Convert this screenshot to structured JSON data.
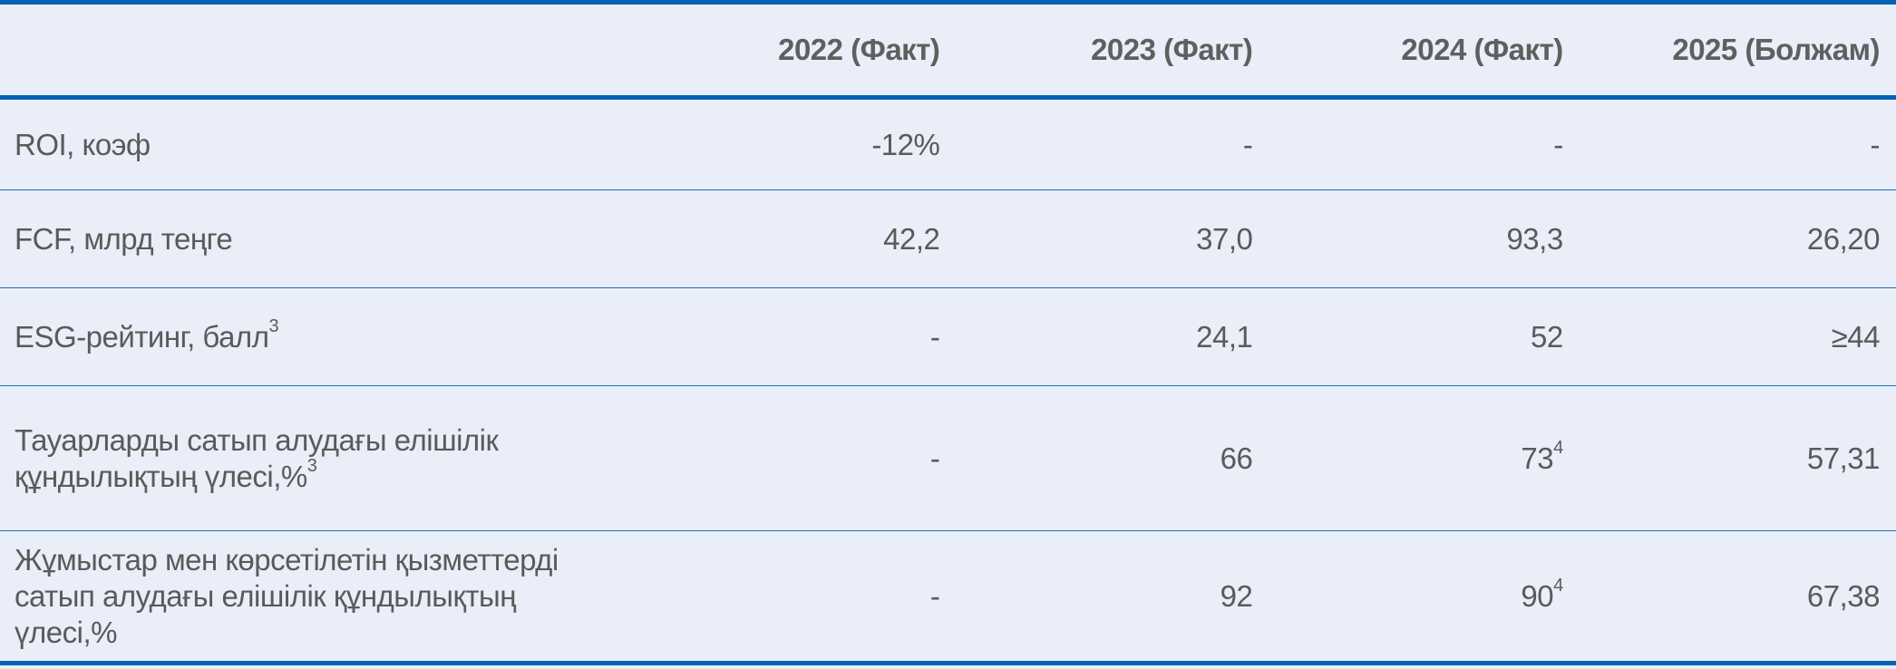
{
  "header": {
    "label": "",
    "columns": [
      "2022 (Факт)",
      "2023 (Факт)",
      "2024 (Факт)",
      "2025 (Болжам)"
    ]
  },
  "rows": [
    {
      "label": "ROI, коэф",
      "label_sup": "",
      "cells": [
        {
          "v": "-12%",
          "sup": ""
        },
        {
          "v": "-",
          "sup": ""
        },
        {
          "v": "-",
          "sup": ""
        },
        {
          "v": "-",
          "sup": ""
        }
      ]
    },
    {
      "label": "FCF, млрд теңге",
      "label_sup": "",
      "cells": [
        {
          "v": "42,2",
          "sup": ""
        },
        {
          "v": "37,0",
          "sup": ""
        },
        {
          "v": "93,3",
          "sup": ""
        },
        {
          "v": "26,20",
          "sup": ""
        }
      ]
    },
    {
      "label": "ESG-рейтинг, балл",
      "label_sup": "3",
      "cells": [
        {
          "v": "-",
          "sup": ""
        },
        {
          "v": "24,1",
          "sup": ""
        },
        {
          "v": "52",
          "sup": ""
        },
        {
          "v": "≥44",
          "sup": ""
        }
      ]
    },
    {
      "label": "Тауарларды сатып алудағы елішілік құндылықтың үлесі,%",
      "label_sup": "3",
      "cells": [
        {
          "v": "-",
          "sup": ""
        },
        {
          "v": "66",
          "sup": ""
        },
        {
          "v": "73",
          "sup": "4"
        },
        {
          "v": "57,31",
          "sup": ""
        }
      ]
    },
    {
      "label": "Жұмыстар мен көрсетілетін қызметтерді сатып алудағы елішілік құндылықтың үлесі,%",
      "label_sup": "",
      "cells": [
        {
          "v": "-",
          "sup": ""
        },
        {
          "v": "92",
          "sup": ""
        },
        {
          "v": "90",
          "sup": "4"
        },
        {
          "v": "67,38",
          "sup": ""
        }
      ]
    }
  ],
  "colors": {
    "accent": "#0062B0",
    "background": "#E9EEF8",
    "text": "#5a5a5a"
  }
}
